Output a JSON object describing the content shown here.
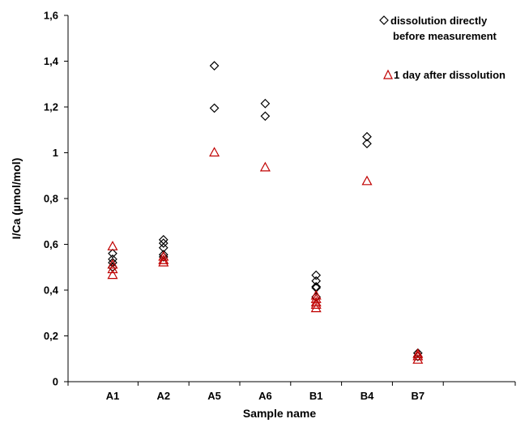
{
  "chart_data": {
    "type": "scatter",
    "xlabel": "Sample name",
    "ylabel": "I/Ca (µmol/mol)",
    "categories": [
      "A1",
      "A2",
      "A5",
      "A6",
      "B1",
      "B4",
      "B7"
    ],
    "ylim": [
      0,
      1.6
    ],
    "yticks": [
      0,
      0.2,
      0.4,
      0.6,
      0.8,
      1,
      1.2,
      1.4,
      1.6
    ],
    "ytick_labels": [
      "0",
      "0,2",
      "0,4",
      "0,6",
      "0,8",
      "1",
      "1,2",
      "1,4",
      "1,6"
    ],
    "grid": false,
    "legend_position": "top-right",
    "series": [
      {
        "name": "dissolution directly before measurement",
        "name_lines": [
          "dissolution directly",
          "before measurement"
        ],
        "marker": "diamond",
        "color": "#000000",
        "points": [
          [
            "A1",
            0.5
          ],
          [
            "A1",
            0.52
          ],
          [
            "A1",
            0.535
          ],
          [
            "A1",
            0.56
          ],
          [
            "A2",
            0.545
          ],
          [
            "A2",
            0.555
          ],
          [
            "A2",
            0.585
          ],
          [
            "A2",
            0.605
          ],
          [
            "A2",
            0.62
          ],
          [
            "A5",
            1.38
          ],
          [
            "A5",
            1.195
          ],
          [
            "A6",
            1.215
          ],
          [
            "A6",
            1.16
          ],
          [
            "B1",
            0.37
          ],
          [
            "B1",
            0.41
          ],
          [
            "B1",
            0.415
          ],
          [
            "B1",
            0.44
          ],
          [
            "B1",
            0.465
          ],
          [
            "B4",
            1.07
          ],
          [
            "B4",
            1.04
          ],
          [
            "B7",
            0.11
          ],
          [
            "B7",
            0.125
          ]
        ]
      },
      {
        "name": "1 day after dissolution",
        "name_lines": [
          "1 day after dissolution"
        ],
        "marker": "triangle",
        "color": "#c00000",
        "points": [
          [
            "A1",
            0.465
          ],
          [
            "A1",
            0.49
          ],
          [
            "A1",
            0.51
          ],
          [
            "A1",
            0.59
          ],
          [
            "A2",
            0.52
          ],
          [
            "A2",
            0.53
          ],
          [
            "A2",
            0.545
          ],
          [
            "A5",
            1.0
          ],
          [
            "A6",
            0.935
          ],
          [
            "B1",
            0.32
          ],
          [
            "B1",
            0.335
          ],
          [
            "B1",
            0.345
          ],
          [
            "B1",
            0.36
          ],
          [
            "B1",
            0.375
          ],
          [
            "B4",
            0.875
          ],
          [
            "B7",
            0.095
          ],
          [
            "B7",
            0.11
          ],
          [
            "B7",
            0.12
          ]
        ]
      }
    ]
  }
}
